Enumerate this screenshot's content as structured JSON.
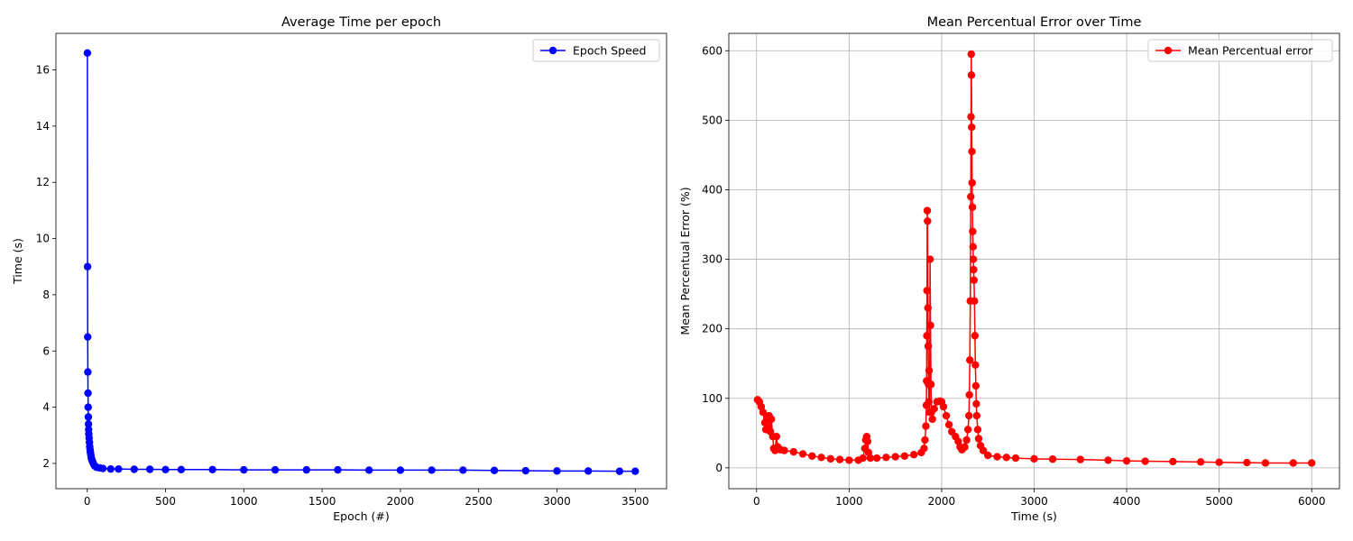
{
  "chart_data": [
    {
      "type": "line",
      "title": "Average Time per epoch",
      "xlabel": "Epoch (#)",
      "ylabel": "Time (s)",
      "xlim": [
        -200,
        3700
      ],
      "ylim": [
        1.1,
        17.3
      ],
      "xticks": [
        0,
        500,
        1000,
        1500,
        2000,
        2500,
        3000,
        3500
      ],
      "yticks": [
        2,
        4,
        6,
        8,
        10,
        12,
        14,
        16
      ],
      "grid": false,
      "legend": "top-right",
      "series": [
        {
          "name": "Epoch Speed",
          "color": "#0000ff",
          "marker": "circle",
          "points": [
            [
              1,
              16.6
            ],
            [
              2,
              9.0
            ],
            [
              3,
              6.5
            ],
            [
              4,
              5.25
            ],
            [
              5,
              4.5
            ],
            [
              6,
              4.0
            ],
            [
              7,
              3.65
            ],
            [
              8,
              3.4
            ],
            [
              9,
              3.2
            ],
            [
              10,
              3.05
            ],
            [
              12,
              2.9
            ],
            [
              14,
              2.75
            ],
            [
              16,
              2.6
            ],
            [
              18,
              2.5
            ],
            [
              20,
              2.4
            ],
            [
              23,
              2.3
            ],
            [
              26,
              2.2
            ],
            [
              30,
              2.12
            ],
            [
              35,
              2.05
            ],
            [
              40,
              1.98
            ],
            [
              45,
              1.93
            ],
            [
              50,
              1.9
            ],
            [
              60,
              1.86
            ],
            [
              80,
              1.84
            ],
            [
              100,
              1.82
            ],
            [
              150,
              1.8
            ],
            [
              200,
              1.8
            ],
            [
              300,
              1.79
            ],
            [
              400,
              1.79
            ],
            [
              500,
              1.78
            ],
            [
              600,
              1.78
            ],
            [
              800,
              1.78
            ],
            [
              1000,
              1.77
            ],
            [
              1200,
              1.77
            ],
            [
              1400,
              1.77
            ],
            [
              1600,
              1.77
            ],
            [
              1800,
              1.76
            ],
            [
              2000,
              1.76
            ],
            [
              2200,
              1.76
            ],
            [
              2400,
              1.76
            ],
            [
              2600,
              1.75
            ],
            [
              2800,
              1.74
            ],
            [
              3000,
              1.73
            ],
            [
              3200,
              1.73
            ],
            [
              3400,
              1.72
            ],
            [
              3500,
              1.72
            ]
          ]
        }
      ]
    },
    {
      "type": "line",
      "title": "Mean Percentual Error over Time",
      "xlabel": "Time (s)",
      "ylabel": "Mean Percentual Error (%)",
      "xlim": [
        -300,
        6300
      ],
      "ylim": [
        -30,
        625
      ],
      "xticks": [
        0,
        1000,
        2000,
        3000,
        4000,
        5000,
        6000
      ],
      "yticks": [
        0,
        100,
        200,
        300,
        400,
        500,
        600
      ],
      "grid": true,
      "legend": "top-right",
      "series": [
        {
          "name": "Mean Percentual error",
          "color": "#ff0000",
          "marker": "circle",
          "points": [
            [
              10,
              98
            ],
            [
              30,
              95
            ],
            [
              50,
              88
            ],
            [
              70,
              80
            ],
            [
              90,
              65
            ],
            [
              100,
              55
            ],
            [
              110,
              72
            ],
            [
              120,
              58
            ],
            [
              135,
              75
            ],
            [
              150,
              52
            ],
            [
              160,
              70
            ],
            [
              175,
              45
            ],
            [
              185,
              28
            ],
            [
              200,
              25
            ],
            [
              215,
              45
            ],
            [
              230,
              30
            ],
            [
              260,
              26
            ],
            [
              300,
              25
            ],
            [
              400,
              23
            ],
            [
              500,
              20
            ],
            [
              600,
              17
            ],
            [
              700,
              15
            ],
            [
              800,
              13
            ],
            [
              900,
              12
            ],
            [
              1000,
              11
            ],
            [
              1100,
              11
            ],
            [
              1150,
              14
            ],
            [
              1170,
              28
            ],
            [
              1180,
              40
            ],
            [
              1190,
              45
            ],
            [
              1200,
              38
            ],
            [
              1210,
              22
            ],
            [
              1230,
              14
            ],
            [
              1300,
              14
            ],
            [
              1400,
              15
            ],
            [
              1500,
              16
            ],
            [
              1600,
              17
            ],
            [
              1700,
              19
            ],
            [
              1780,
              22
            ],
            [
              1810,
              28
            ],
            [
              1820,
              40
            ],
            [
              1830,
              60
            ],
            [
              1835,
              90
            ],
            [
              1838,
              125
            ],
            [
              1840,
              190
            ],
            [
              1842,
              255
            ],
            [
              1845,
              370
            ],
            [
              1848,
              355
            ],
            [
              1852,
              230
            ],
            [
              1855,
              175
            ],
            [
              1858,
              120
            ],
            [
              1862,
              95
            ],
            [
              1865,
              140
            ],
            [
              1870,
              80
            ],
            [
              1875,
              300
            ],
            [
              1880,
              205
            ],
            [
              1885,
              120
            ],
            [
              1890,
              80
            ],
            [
              1900,
              70
            ],
            [
              1920,
              85
            ],
            [
              1950,
              95
            ],
            [
              1980,
              96
            ],
            [
              2000,
              95
            ],
            [
              2020,
              88
            ],
            [
              2050,
              75
            ],
            [
              2080,
              62
            ],
            [
              2110,
              52
            ],
            [
              2150,
              45
            ],
            [
              2180,
              38
            ],
            [
              2200,
              30
            ],
            [
              2220,
              26
            ],
            [
              2250,
              30
            ],
            [
              2270,
              40
            ],
            [
              2285,
              55
            ],
            [
              2295,
              75
            ],
            [
              2300,
              105
            ],
            [
              2305,
              155
            ],
            [
              2310,
              240
            ],
            [
              2315,
              390
            ],
            [
              2318,
              505
            ],
            [
              2320,
              595
            ],
            [
              2322,
              565
            ],
            [
              2325,
              490
            ],
            [
              2328,
              455
            ],
            [
              2330,
              410
            ],
            [
              2333,
              375
            ],
            [
              2336,
              340
            ],
            [
              2340,
              318
            ],
            [
              2343,
              300
            ],
            [
              2346,
              285
            ],
            [
              2350,
              270
            ],
            [
              2355,
              240
            ],
            [
              2360,
              190
            ],
            [
              2365,
              148
            ],
            [
              2370,
              118
            ],
            [
              2375,
              92
            ],
            [
              2380,
              75
            ],
            [
              2390,
              55
            ],
            [
              2400,
              42
            ],
            [
              2420,
              32
            ],
            [
              2450,
              25
            ],
            [
              2500,
              18
            ],
            [
              2600,
              16
            ],
            [
              2700,
              15
            ],
            [
              2800,
              14
            ],
            [
              3000,
              13
            ],
            [
              3200,
              12.5
            ],
            [
              3500,
              12
            ],
            [
              3800,
              11
            ],
            [
              4000,
              10
            ],
            [
              4200,
              9.5
            ],
            [
              4500,
              9
            ],
            [
              4800,
              8.5
            ],
            [
              5000,
              8
            ],
            [
              5300,
              7.5
            ],
            [
              5500,
              7
            ],
            [
              5800,
              7
            ],
            [
              6000,
              7
            ]
          ]
        }
      ]
    }
  ]
}
